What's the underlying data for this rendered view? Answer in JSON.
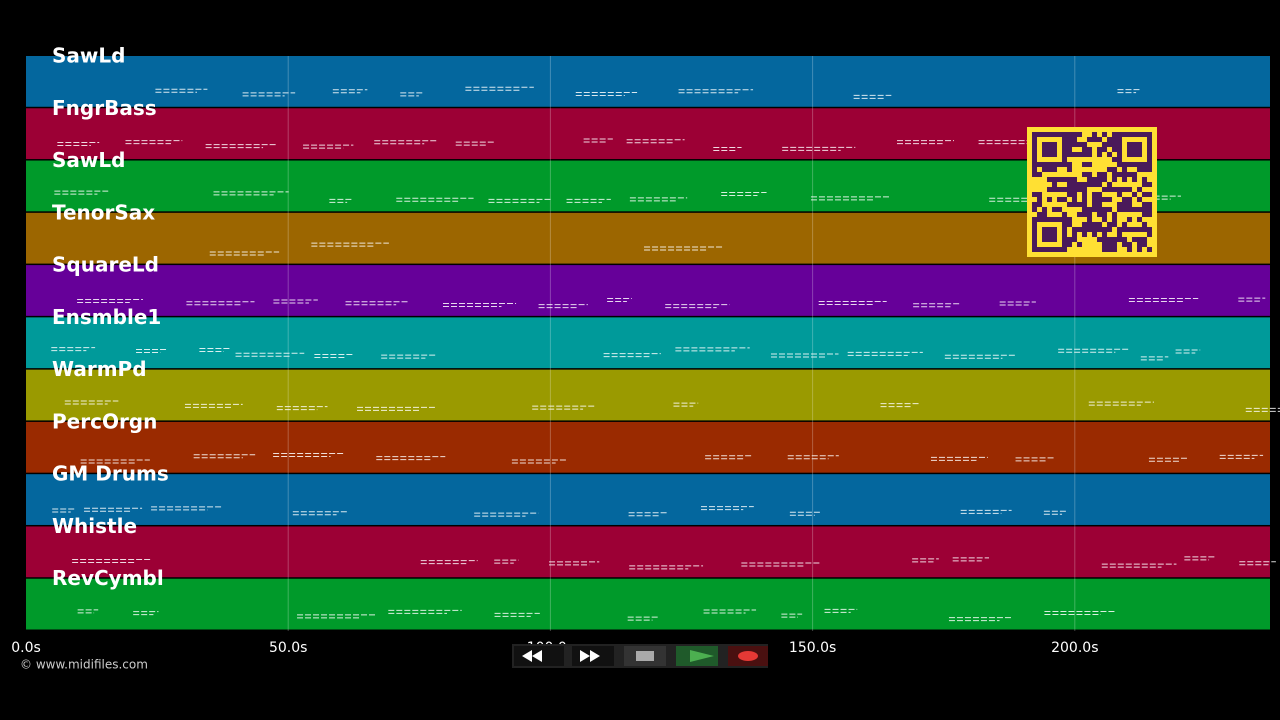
{
  "tracks": [
    {
      "name": "SawLd",
      "color": "#04679e"
    },
    {
      "name": "FngrBass",
      "color": "#9c0035"
    },
    {
      "name": "SawLd",
      "color": "#009a2a"
    },
    {
      "name": "TenorSax",
      "color": "#9c6600"
    },
    {
      "name": "SquareLd",
      "color": "#660099"
    },
    {
      "name": "Ensmble1",
      "color": "#009a9a"
    },
    {
      "name": "WarmPd",
      "color": "#9a9a00"
    },
    {
      "name": "PercOrgn",
      "color": "#9a2a00"
    },
    {
      "name": "GM Drums",
      "color": "#04679e"
    },
    {
      "name": "Whistle",
      "color": "#9c0035"
    },
    {
      "name": "RevCymbl",
      "color": "#009a2a"
    }
  ],
  "time_ticks": [
    "0.0s",
    "50.0s",
    "100.0s",
    "150.0s",
    "200.0s"
  ],
  "copyright": "© www.midifiles.com"
}
